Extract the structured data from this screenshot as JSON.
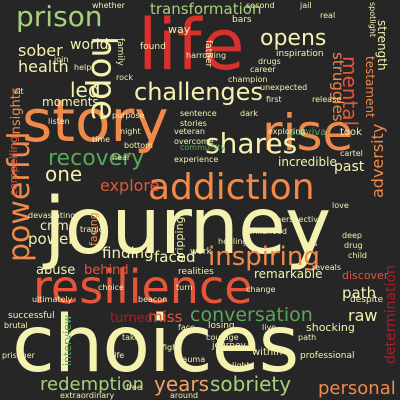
{
  "words": {
    "w0": "journey",
    "w1": "choices",
    "w2": "life",
    "w3": "story",
    "w4": "resilience",
    "w5": "rise",
    "w6": "addiction",
    "w7": "shares",
    "w8": "prison",
    "w9": "hope",
    "w10": "challenges",
    "w11": "powerful",
    "w12": "inspiring",
    "w13": "recovery",
    "w14": "transformation",
    "w15": "opens",
    "w16": "mental",
    "w17": "sobriety",
    "w18": "redemption",
    "w19": "years",
    "w20": "personal",
    "w21": "conversation",
    "w22": "explore",
    "w23": "path",
    "w24": "raw",
    "w25": "one",
    "w26": "led",
    "w27": "sober",
    "w28": "health",
    "w29": "world",
    "w30": "struggles",
    "w31": "adversity",
    "w32": "determination",
    "w33": "power",
    "w34": "crime",
    "w35": "abuse",
    "w36": "finding",
    "w37": "faced",
    "w38": "behind",
    "w39": "miss",
    "w40": "turned",
    "w41": "incredible",
    "w42": "past",
    "w43": "remarkable",
    "w44": "moments",
    "w45": "insights",
    "w46": "strength",
    "w47": "testament",
    "w48": "compelling",
    "w49": "facing",
    "w50": "survival",
    "w51": "took",
    "w52": "gripping",
    "w53": "experience",
    "w54": "successful",
    "w55": "interview",
    "w56": "shocking",
    "w57": "professional",
    "w58": "discover",
    "w59": "despite",
    "w60": "within",
    "w61": "losing",
    "w62": "realities",
    "w63": "work",
    "w64": "journey",
    "w65": "healing",
    "w66": "family",
    "w67": "father",
    "w68": "found",
    "w69": "way",
    "w70": "inspiration",
    "w71": "bars",
    "w72": "overcome",
    "w73": "stories",
    "w74": "veteran",
    "w75": "community",
    "w76": "sentence",
    "w77": "night",
    "w78": "purpose",
    "w79": "drugs",
    "w80": "career",
    "w81": "champion",
    "w82": "deep",
    "w83": "child",
    "w84": "childhood",
    "w85": "perspective",
    "w86": "unexpected",
    "w87": "drug",
    "w88": "cartel",
    "w89": "beacon",
    "w90": "courage",
    "w91": "face",
    "w92": "around",
    "w93": "trauma",
    "w94": "brutal",
    "w95": "ultimately",
    "w96": "tragic",
    "w97": "devastating",
    "w98": "whether",
    "w99": "join",
    "w100": "spotlight",
    "w101": "harrowing",
    "w102": "exploring",
    "w103": "extraordinary",
    "w104": "listen",
    "w105": "prisoner",
    "w106": "jail",
    "w107": "help",
    "w108": "hear",
    "w109": "second",
    "w110": "path",
    "w111": "takes",
    "w112": "turn",
    "w113": "release",
    "w114": "life",
    "w115": "live",
    "w116": "first",
    "w117": "real",
    "w118": "reveals",
    "w119": "rock",
    "w120": "bottom",
    "w121": "fight",
    "w122": "free",
    "w123": "change",
    "w124": "choice",
    "w125": "loss",
    "w126": "love",
    "w127": "sit",
    "w128": "time",
    "w129": "dark",
    "w130": "light"
  },
  "colors": {
    "bg": "#262626",
    "cream": "#f5f2b0",
    "orange": "#f08a4b",
    "red": "#d7312d",
    "coral": "#e6553a",
    "green": "#5aa65a",
    "lime": "#a7d07b",
    "darkred": "#a91e2b",
    "salmon": "#f4a16a",
    "teal": "#3f8f6b"
  }
}
